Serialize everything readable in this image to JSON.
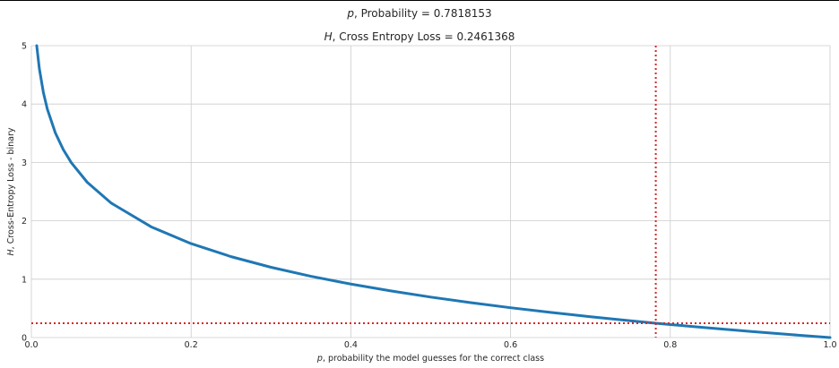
{
  "figure": {
    "suptitle_var": "p",
    "suptitle_rest": ", Probability = 0.7818153",
    "subtitle_var": "H",
    "subtitle_rest": ", Cross Entropy Loss = 0.2461368"
  },
  "chart_data": {
    "type": "line",
    "xlabel_var": "p",
    "xlabel_rest": ", probability the model guesses for the correct class",
    "ylabel_var": "H",
    "ylabel_rest": ", Cross-Entropy Loss - binary",
    "xlim": [
      0.0,
      1.0
    ],
    "ylim": [
      0,
      5
    ],
    "xticks": [
      "0.0",
      "0.2",
      "0.4",
      "0.6",
      "0.8",
      "1.0"
    ],
    "yticks": [
      "0",
      "1",
      "2",
      "3",
      "4",
      "5"
    ],
    "grid": true,
    "series": [
      {
        "color": "#1f77b4",
        "x": [
          0.0067,
          0.01,
          0.015,
          0.02,
          0.03,
          0.04,
          0.05,
          0.07,
          0.1,
          0.15,
          0.2,
          0.25,
          0.3,
          0.35,
          0.4,
          0.45,
          0.5,
          0.55,
          0.6,
          0.65,
          0.7,
          0.75,
          0.7818153,
          0.8,
          0.85,
          0.9,
          0.95,
          1.0
        ],
        "y": [
          5.0,
          4.605,
          4.2,
          3.912,
          3.507,
          3.219,
          2.996,
          2.659,
          2.303,
          1.897,
          1.609,
          1.386,
          1.204,
          1.05,
          0.916,
          0.799,
          0.693,
          0.598,
          0.511,
          0.431,
          0.357,
          0.288,
          0.2461368,
          0.223,
          0.163,
          0.105,
          0.051,
          0.0
        ]
      }
    ],
    "reference_lines": {
      "vertical_x": 0.7818153,
      "horizontal_y": 0.2461368,
      "color": "#d62728",
      "style": "dotted"
    }
  }
}
